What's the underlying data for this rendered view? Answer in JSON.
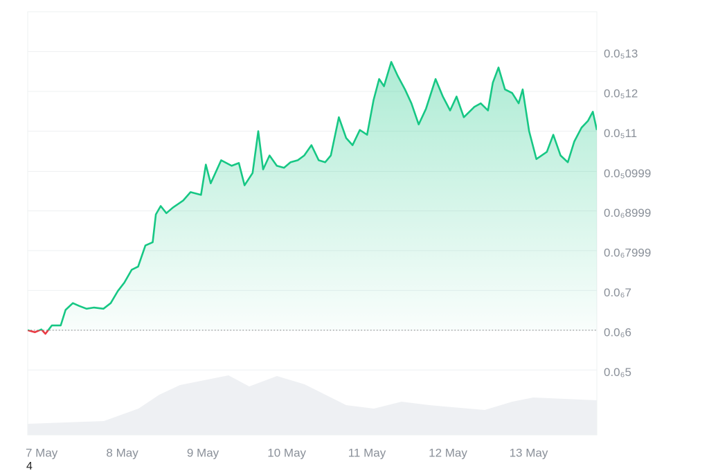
{
  "chart_data": {
    "type": "line",
    "footnote": "4",
    "color": "#16c784",
    "down_color": "#ea3943",
    "x": [
      7.0,
      7.09,
      7.17,
      7.22,
      7.3,
      7.41,
      7.47,
      7.56,
      7.64,
      7.73,
      7.82,
      7.94,
      8.03,
      8.12,
      8.2,
      8.29,
      8.37,
      8.46,
      8.55,
      8.59,
      8.65,
      8.72,
      8.8,
      8.93,
      9.02,
      9.15,
      9.21,
      9.27,
      9.4,
      9.53,
      9.62,
      9.69,
      9.79,
      9.86,
      9.92,
      10.0,
      10.09,
      10.18,
      10.26,
      10.35,
      10.43,
      10.52,
      10.61,
      10.69,
      10.76,
      10.86,
      10.95,
      11.03,
      11.12,
      11.21,
      11.29,
      11.36,
      11.42,
      11.51,
      11.59,
      11.68,
      11.76,
      11.85,
      11.94,
      12.06,
      12.15,
      12.24,
      12.32,
      12.41,
      12.54,
      12.62,
      12.71,
      12.77,
      12.84,
      12.92,
      13.01,
      13.09,
      13.14,
      13.22,
      13.31,
      13.44,
      13.52,
      13.61,
      13.7,
      13.78,
      13.87,
      13.95,
      14.01,
      14.06
    ],
    "values": [
      6e-07,
      5.95e-07,
      6.02e-07,
      5.91e-07,
      6.12e-07,
      6.12e-07,
      6.51e-07,
      6.68e-07,
      6.61e-07,
      6.54e-07,
      6.57e-07,
      6.54e-07,
      6.68e-07,
      6.99e-07,
      7.2e-07,
      7.52e-07,
      7.6e-07,
      8.13e-07,
      8.21e-07,
      8.91e-07,
      9.12e-07,
      8.94e-07,
      9.08e-07,
      9.26e-07,
      9.47e-07,
      9.4e-07,
      1.016e-06,
      9.69e-07,
      1.027e-06,
      1.013e-06,
      1.02e-06,
      9.64e-07,
      9.95e-07,
      1.1e-06,
      1.004e-06,
      1.039e-06,
      1.013e-06,
      1.008e-06,
      1.022e-06,
      1.027e-06,
      1.039e-06,
      1.065e-06,
      1.027e-06,
      1.022e-06,
      1.039e-06,
      1.135e-06,
      1.083e-06,
      1.065e-06,
      1.103e-06,
      1.091e-06,
      1.178e-06,
      1.231e-06,
      1.213e-06,
      1.274e-06,
      1.239e-06,
      1.205e-06,
      1.17e-06,
      1.117e-06,
      1.156e-06,
      1.231e-06,
      1.187e-06,
      1.152e-06,
      1.187e-06,
      1.135e-06,
      1.161e-06,
      1.17e-06,
      1.152e-06,
      1.222e-06,
      1.26e-06,
      1.205e-06,
      1.196e-06,
      1.17e-06,
      1.205e-06,
      1.1e-06,
      1.03e-06,
      1.048e-06,
      1.091e-06,
      1.039e-06,
      1.022e-06,
      1.074e-06,
      1.109e-06,
      1.126e-06,
      1.149e-06,
      1.103e-06
    ],
    "xlim": [
      7,
      14.06
    ],
    "xticks": [
      {
        "value": 7,
        "label": "7 May"
      },
      {
        "value": 8,
        "label": "8 May"
      },
      {
        "value": 9,
        "label": "9 May"
      },
      {
        "value": 10,
        "label": "10 May"
      },
      {
        "value": 11,
        "label": "11 May"
      },
      {
        "value": 12,
        "label": "12 May"
      },
      {
        "value": 13,
        "label": "13 May"
      }
    ],
    "ylim": [
      3.37e-07,
      1.4e-06
    ],
    "yticks": [
      {
        "value": 1.3e-06,
        "label": "0.0₅13"
      },
      {
        "value": 1.2e-06,
        "label": "0.0₅12"
      },
      {
        "value": 1.1e-06,
        "label": "0.0₅11"
      },
      {
        "value": 9.99e-07,
        "label": "0.0₅0999"
      },
      {
        "value": 8.999e-07,
        "label": "0.0₆8999"
      },
      {
        "value": 7.999e-07,
        "label": "0.0₆7999"
      },
      {
        "value": 7e-07,
        "label": "0.0₆7"
      },
      {
        "value": 6e-07,
        "label": "0.0₆6"
      },
      {
        "value": 5e-07,
        "label": "0.0₆5"
      }
    ],
    "grid": true
  }
}
